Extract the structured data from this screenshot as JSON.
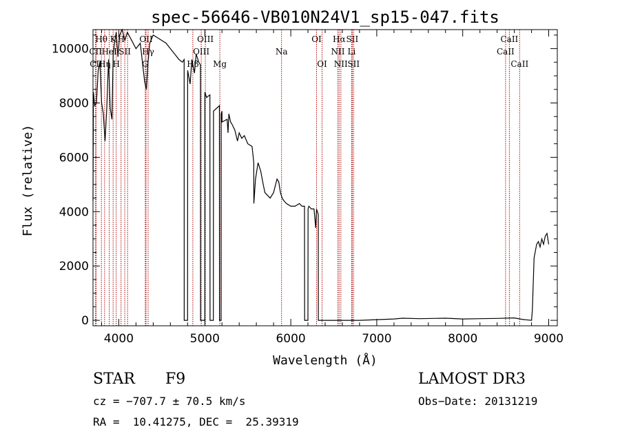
{
  "chart_data": {
    "type": "line",
    "title": "spec-56646-VB010N24V1_sp15-047.fits",
    "xlabel": "Wavelength (Å)",
    "ylabel": "Flux (relative)",
    "xlim": [
      3700,
      9100
    ],
    "ylim": [
      -200,
      10700
    ],
    "xticks": [
      4000,
      5000,
      6000,
      7000,
      8000,
      9000
    ],
    "xtick_labels": [
      "4000",
      "5000",
      "6000",
      "7000",
      "8000",
      "9000"
    ],
    "yticks": [
      0,
      2000,
      4000,
      6000,
      8000,
      10000
    ],
    "ytick_labels": [
      "0",
      "2000",
      "4000",
      "6000",
      "8000",
      "10000"
    ],
    "grid": false,
    "series": [
      {
        "name": "spectrum",
        "color": "#000000",
        "x": [
          3700,
          3705,
          3720,
          3740,
          3760,
          3780,
          3800,
          3820,
          3840,
          3860,
          3880,
          3900,
          3920,
          3935,
          3950,
          3970,
          3990,
          4010,
          4040,
          4070,
          4100,
          4150,
          4200,
          4250,
          4300,
          4320,
          4340,
          4360,
          4400,
          4450,
          4500,
          4550,
          4600,
          4650,
          4700,
          4740,
          4760,
          4761,
          4800,
          4801,
          4830,
          4850,
          4880,
          4900,
          4930,
          4950,
          4951,
          5000,
          5001,
          5020,
          5060,
          5061,
          5100,
          5101,
          5170,
          5171,
          5190,
          5191,
          5200,
          5201,
          5260,
          5270,
          5280,
          5300,
          5320,
          5350,
          5380,
          5400,
          5430,
          5460,
          5500,
          5550,
          5570,
          5571,
          5590,
          5620,
          5650,
          5680,
          5700,
          5760,
          5800,
          5840,
          5860,
          5880,
          5900,
          5920,
          5950,
          6000,
          6050,
          6100,
          6130,
          6160,
          6161,
          6200,
          6201,
          6210,
          6240,
          6270,
          6290,
          6300,
          6320,
          6321,
          6400,
          6500,
          6800,
          7200,
          7300,
          7500,
          7800,
          8000,
          8200,
          8400,
          8600,
          8700,
          8800,
          8810,
          8830,
          8860,
          8880,
          8900,
          8920,
          8940,
          8960,
          8980,
          9000
        ],
        "y": [
          4400,
          8400,
          7900,
          8000,
          9200,
          9500,
          8000,
          7600,
          6600,
          7800,
          9600,
          7800,
          7400,
          9800,
          10200,
          10600,
          9700,
          10500,
          10700,
          10300,
          10600,
          10300,
          10000,
          10200,
          8800,
          8500,
          9500,
          10200,
          10500,
          10400,
          10300,
          10200,
          10000,
          9800,
          9600,
          9500,
          9600,
          0,
          0,
          9200,
          8700,
          9600,
          9100,
          9800,
          9500,
          9400,
          0,
          0,
          8400,
          8200,
          8300,
          0,
          0,
          7700,
          7900,
          0,
          0,
          7600,
          7700,
          7300,
          7400,
          6900,
          7600,
          7300,
          7200,
          7000,
          6600,
          6900,
          6700,
          6800,
          6500,
          6400,
          5800,
          4300,
          5200,
          5800,
          5500,
          5000,
          4700,
          4500,
          4700,
          5200,
          5100,
          4700,
          4500,
          4400,
          4300,
          4200,
          4200,
          4300,
          4200,
          4200,
          0,
          0,
          4100,
          4200,
          4100,
          4100,
          3400,
          4100,
          3900,
          0,
          0,
          0,
          0,
          50,
          80,
          60,
          80,
          50,
          60,
          70,
          90,
          30,
          0,
          400,
          2300,
          2800,
          2900,
          2700,
          3000,
          2800,
          3100,
          3200,
          2800
        ]
      }
    ],
    "lines_color": "#b00000",
    "line_labels": [
      {
        "label": "Hθ",
        "x": 3798,
        "row": 0
      },
      {
        "label": "CII",
        "x": 3730,
        "row": 1
      },
      {
        "label": "CII",
        "x": 3737,
        "row": 2
      },
      {
        "label": "K",
        "x": 3934,
        "row": 0
      },
      {
        "label": "HeI",
        "x": 3889,
        "row": 1
      },
      {
        "label": "Hη",
        "x": 3835,
        "row": 2
      },
      {
        "label": "H",
        "x": 3970,
        "row": 2
      },
      {
        "label": "H",
        "x": 4026,
        "row": 0
      },
      {
        "label": "SII",
        "x": 4069,
        "row": 1
      },
      {
        "label": "OII",
        "x": 4317,
        "row": 0
      },
      {
        "label": "G",
        "x": 4308,
        "row": 2
      },
      {
        "label": "Hγ",
        "x": 4341,
        "row": 1
      },
      {
        "label": "OIII",
        "x": 5007,
        "row": 0
      },
      {
        "label": "OIII",
        "x": 4959,
        "row": 1
      },
      {
        "label": "Hβ",
        "x": 4861,
        "row": 2
      },
      {
        "label": "Mg",
        "x": 5175,
        "row": 2
      },
      {
        "label": "Na",
        "x": 5893,
        "row": 1
      },
      {
        "label": "OI",
        "x": 6300,
        "row": 0
      },
      {
        "label": "OI",
        "x": 6364,
        "row": 2
      },
      {
        "label": "Hα",
        "x": 6563,
        "row": 0
      },
      {
        "label": "SII",
        "x": 6716,
        "row": 0
      },
      {
        "label": "NII",
        "x": 6548,
        "row": 1
      },
      {
        "label": "Li",
        "x": 6708,
        "row": 1
      },
      {
        "label": "NII",
        "x": 6583,
        "row": 2
      },
      {
        "label": "SII",
        "x": 6731,
        "row": 2
      },
      {
        "label": "CaII",
        "x": 8542,
        "row": 0
      },
      {
        "label": "CaII",
        "x": 8498,
        "row": 1
      },
      {
        "label": "CaII",
        "x": 8662,
        "row": 2
      }
    ],
    "line_positions": [
      3730,
      3737,
      3798,
      3835,
      3889,
      3934,
      3970,
      4026,
      4069,
      4102,
      4308,
      4317,
      4341,
      4861,
      4959,
      5007,
      5175,
      5893,
      6300,
      6364,
      6548,
      6563,
      6583,
      6708,
      6716,
      6731,
      8498,
      8542,
      8662
    ]
  },
  "info": {
    "object_class": "STAR",
    "subclass": "F9",
    "survey": "LAMOST DR3",
    "cz": "cz = −707.7 ± 70.5 km/s",
    "obs_date": "Obs−Date: 20131219",
    "radec": "RA =  10.41275, DEC =  25.39319"
  }
}
